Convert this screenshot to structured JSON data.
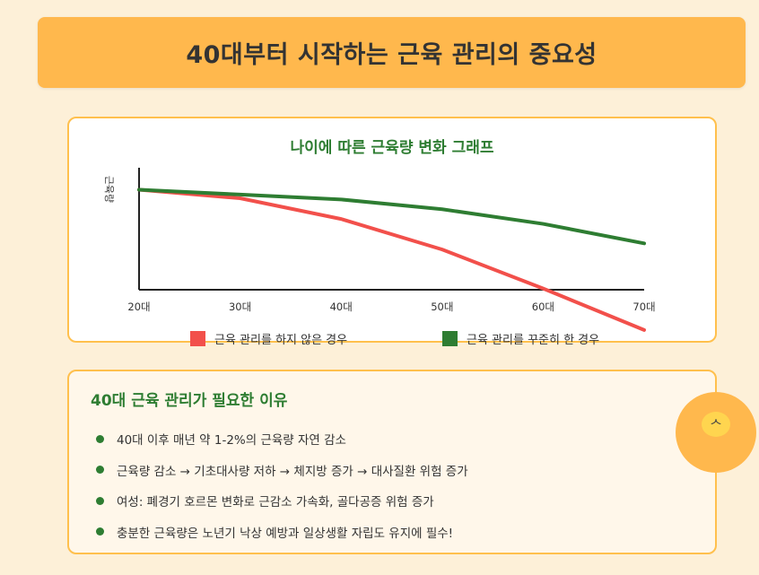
{
  "page_title": "40대부터 시작하는 근육 관리의 중요성",
  "chart_data": {
    "type": "line",
    "title": "나이에 따른 근육량 변화 그래프",
    "xlabel": "",
    "ylabel": "근육량",
    "categories": [
      "20대",
      "30대",
      "40대",
      "50대",
      "60대",
      "70대"
    ],
    "y_tick_labels": false,
    "ylim": [
      0,
      100
    ],
    "grid": false,
    "legend_position": "bottom",
    "series": [
      {
        "name": "근육 관리를 하지 않은 경우",
        "color": "#f2504b",
        "values": [
          82,
          75,
          58,
          33,
          1,
          -33
        ]
      },
      {
        "name": "근육 관리를 꾸준히 한 경우",
        "color": "#2e7d32",
        "values": [
          82,
          78,
          74,
          66,
          54,
          38
        ]
      }
    ]
  },
  "reasons": {
    "title": "40대 근육 관리가 필요한 이유",
    "items": [
      "40대 이후 매년 약 1-2%의 근육량 자연 감소",
      "근육량 감소 → 기초대사량 저하 → 체지방 증가 → 대사질환 위험 증가",
      "여성: 폐경기 호르몬 변화로 근감소 가속화, 골다공증 위험 증가",
      "충분한 근육량은 노년기 낙상 예방과 일상생활 자립도 유지에 필수!"
    ]
  },
  "badge": {
    "icon": "muscle-icon",
    "glyph": "ᄉ"
  }
}
